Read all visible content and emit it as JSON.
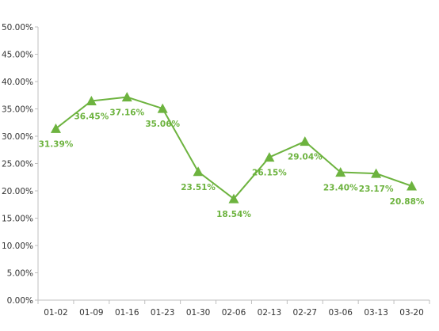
{
  "colors": {
    "series": "#6db33f",
    "axis": "#bfbfbf",
    "tick_text": "#333333"
  },
  "chart_data": {
    "type": "line",
    "title": "",
    "xlabel": "",
    "ylabel": "",
    "ylim": [
      0,
      50
    ],
    "y_ticks": [
      "0.00%",
      "5.00%",
      "10.00%",
      "15.00%",
      "20.00%",
      "25.00%",
      "30.00%",
      "35.00%",
      "40.00%",
      "45.00%",
      "50.00%"
    ],
    "grid": false,
    "legend": "none",
    "marker": "triangle",
    "categories": [
      "01-02",
      "01-09",
      "01-16",
      "01-23",
      "01-30",
      "02-06",
      "02-13",
      "02-27",
      "03-06",
      "03-13",
      "03-20"
    ],
    "series": [
      {
        "values": [
          31.39,
          36.45,
          37.16,
          35.06,
          23.51,
          18.54,
          26.15,
          29.04,
          23.4,
          23.17,
          20.88
        ],
        "labels": [
          "31.39%",
          "36.45%",
          "37.16%",
          "35.06%",
          "23.51%",
          "18.54%",
          "26.15%",
          "29.04%",
          "23.40%",
          "23.17%",
          "20.88%"
        ]
      }
    ]
  }
}
